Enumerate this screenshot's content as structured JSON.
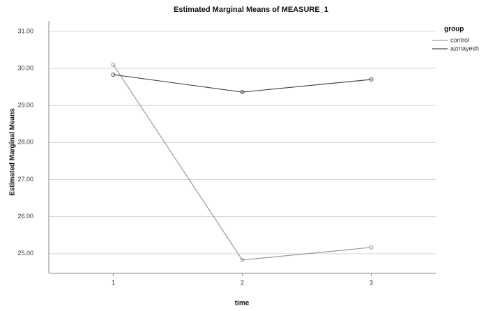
{
  "chart_data": {
    "type": "line",
    "title": "Estimated Marginal Means of MEASURE_1",
    "x_label": "time",
    "y_label": "Estimated Marginal Means",
    "legend_title": "group",
    "legend_position": "right",
    "categories": [
      "1",
      "2",
      "3"
    ],
    "series": [
      {
        "name": "control",
        "color": "#9a9a9a",
        "values": [
          30.1,
          24.83,
          25.17
        ]
      },
      {
        "name": "azmayesh",
        "color": "#4a4a4a",
        "values": [
          29.83,
          29.36,
          29.7
        ]
      }
    ],
    "ylim": [
      24.47,
      31.28
    ],
    "yticks": [
      {
        "value": 25,
        "label": "25.00"
      },
      {
        "value": 26,
        "label": "26.00"
      },
      {
        "value": 27,
        "label": "27.00"
      },
      {
        "value": 28,
        "label": "28.00"
      },
      {
        "value": 29,
        "label": "29.00"
      },
      {
        "value": 30,
        "label": "30.00"
      },
      {
        "value": 31,
        "label": "31.00"
      }
    ],
    "grid": true
  }
}
